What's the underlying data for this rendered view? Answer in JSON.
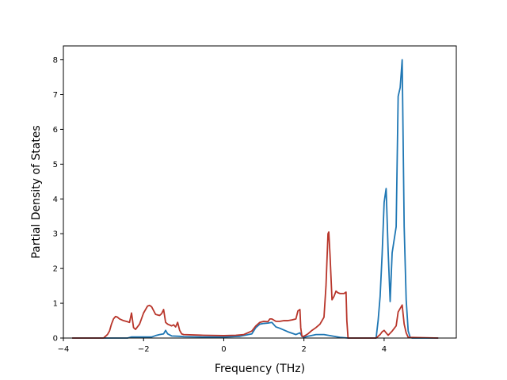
{
  "chart_data": {
    "type": "line",
    "xlabel": "Frequency (THz)",
    "ylabel": "Partial Density of States",
    "xlim": [
      -4.0,
      5.8
    ],
    "ylim": [
      0,
      8.4
    ],
    "xticks": [
      -4,
      -2,
      0,
      2,
      4
    ],
    "yticks": [
      0,
      1,
      2,
      3,
      4,
      5,
      6,
      7,
      8
    ],
    "grid": false,
    "series": [
      {
        "color": "#1f77b4",
        "x": [
          -3.78,
          -3.0,
          -2.4,
          -2.3,
          -2.2,
          -1.8,
          -1.7,
          -1.6,
          -1.5,
          -1.45,
          -1.4,
          -1.3,
          -1.1,
          -1.0,
          -0.5,
          0.0,
          0.4,
          0.7,
          0.8,
          0.9,
          1.0,
          1.1,
          1.2,
          1.3,
          1.4,
          1.6,
          1.8,
          1.9,
          1.95,
          2.0,
          2.1,
          2.3,
          2.5,
          2.7,
          2.9,
          3.1,
          3.5,
          3.8,
          3.85,
          3.9,
          3.95,
          4.0,
          4.05,
          4.1,
          4.15,
          4.2,
          4.3,
          4.35,
          4.4,
          4.45,
          4.5,
          4.55,
          4.6,
          4.65,
          4.7,
          5.35
        ],
        "values": [
          0,
          0,
          0,
          0.03,
          0.03,
          0.03,
          0.07,
          0.1,
          0.12,
          0.22,
          0.12,
          0.06,
          0.05,
          0.04,
          0.03,
          0.03,
          0.05,
          0.12,
          0.3,
          0.4,
          0.42,
          0.43,
          0.45,
          0.32,
          0.28,
          0.18,
          0.1,
          0.15,
          0.05,
          0.02,
          0.05,
          0.1,
          0.1,
          0.06,
          0.02,
          0.0,
          0.0,
          0.0,
          0.5,
          1.2,
          2.4,
          3.9,
          4.3,
          2.5,
          1.05,
          2.45,
          3.2,
          6.95,
          7.2,
          8.0,
          3.2,
          1.1,
          0.2,
          0.02,
          0,
          0
        ]
      },
      {
        "color": "#b8352a",
        "x": [
          -3.78,
          -3.0,
          -2.95,
          -2.9,
          -2.85,
          -2.8,
          -2.75,
          -2.7,
          -2.65,
          -2.6,
          -2.5,
          -2.4,
          -2.35,
          -2.3,
          -2.25,
          -2.2,
          -2.1,
          -2.0,
          -1.9,
          -1.85,
          -1.8,
          -1.7,
          -1.6,
          -1.55,
          -1.5,
          -1.45,
          -1.4,
          -1.3,
          -1.25,
          -1.2,
          -1.15,
          -1.1,
          -1.05,
          -1.0,
          -0.5,
          0.0,
          0.3,
          0.5,
          0.7,
          0.8,
          0.9,
          1.0,
          1.1,
          1.15,
          1.2,
          1.3,
          1.4,
          1.5,
          1.6,
          1.7,
          1.8,
          1.85,
          1.9,
          1.92,
          1.95,
          2.0,
          2.1,
          2.2,
          2.3,
          2.4,
          2.5,
          2.55,
          2.6,
          2.62,
          2.65,
          2.7,
          2.75,
          2.8,
          2.85,
          2.9,
          3.0,
          3.05,
          3.07,
          3.1,
          3.8,
          3.85,
          3.9,
          3.95,
          4.0,
          4.05,
          4.1,
          4.2,
          4.3,
          4.35,
          4.4,
          4.45,
          4.5,
          4.55,
          4.6,
          5.35
        ],
        "values": [
          0,
          0,
          0.05,
          0.1,
          0.2,
          0.4,
          0.55,
          0.62,
          0.6,
          0.55,
          0.5,
          0.47,
          0.45,
          0.72,
          0.3,
          0.25,
          0.4,
          0.72,
          0.92,
          0.94,
          0.9,
          0.68,
          0.65,
          0.7,
          0.82,
          0.45,
          0.4,
          0.35,
          0.38,
          0.32,
          0.45,
          0.22,
          0.12,
          0.1,
          0.08,
          0.07,
          0.08,
          0.1,
          0.2,
          0.35,
          0.45,
          0.48,
          0.47,
          0.55,
          0.55,
          0.48,
          0.48,
          0.5,
          0.5,
          0.52,
          0.55,
          0.78,
          0.82,
          0.3,
          0.05,
          0.05,
          0.12,
          0.22,
          0.3,
          0.4,
          0.6,
          1.5,
          3.0,
          3.05,
          2.4,
          1.1,
          1.2,
          1.35,
          1.3,
          1.28,
          1.28,
          1.32,
          0.5,
          0.0,
          0.0,
          0.05,
          0.1,
          0.18,
          0.22,
          0.15,
          0.08,
          0.2,
          0.35,
          0.75,
          0.85,
          0.95,
          0.4,
          0.15,
          0.02,
          0
        ]
      }
    ]
  }
}
